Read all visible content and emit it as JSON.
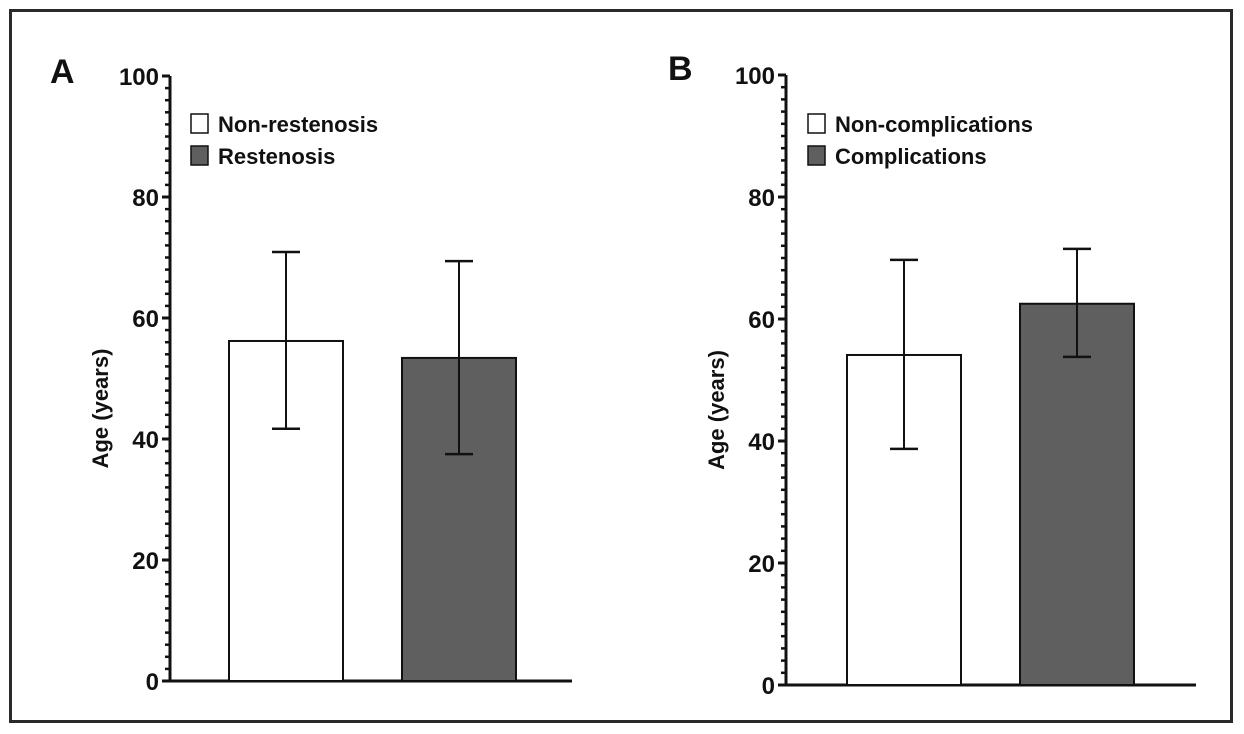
{
  "chart_data": [
    {
      "type": "bar",
      "panel": "A",
      "title": "",
      "xlabel": "",
      "ylabel": "Age (years)",
      "ylim": [
        0,
        100
      ],
      "yticks": [
        0,
        20,
        40,
        60,
        80,
        100
      ],
      "minor_tick_step": 2,
      "grid": false,
      "legend_position": "top-left",
      "categories": [
        "Non-restenosis",
        "Restenosis"
      ],
      "series": [
        {
          "name": "Non-restenosis",
          "color": "#ffffff",
          "values": [
            56.2
          ],
          "error_upper": [
            70.9
          ],
          "error_lower": [
            41.7
          ]
        },
        {
          "name": "Restenosis",
          "color": "#5f5f5f",
          "values": [
            53.4
          ],
          "error_upper": [
            69.4
          ],
          "error_lower": [
            37.5
          ]
        }
      ]
    },
    {
      "type": "bar",
      "panel": "B",
      "title": "",
      "xlabel": "",
      "ylabel": "Age (years)",
      "ylim": [
        0,
        100
      ],
      "yticks": [
        0,
        20,
        40,
        60,
        80,
        100
      ],
      "minor_tick_step": 2,
      "grid": false,
      "legend_position": "top-left",
      "categories": [
        "Non-complications",
        "Complications"
      ],
      "series": [
        {
          "name": "Non-complications",
          "color": "#ffffff",
          "values": [
            54.1
          ],
          "error_upper": [
            69.7
          ],
          "error_lower": [
            38.7
          ]
        },
        {
          "name": "Complications",
          "color": "#5f5f5f",
          "values": [
            62.5
          ],
          "error_upper": [
            71.5
          ],
          "error_lower": [
            53.8
          ]
        }
      ]
    }
  ]
}
